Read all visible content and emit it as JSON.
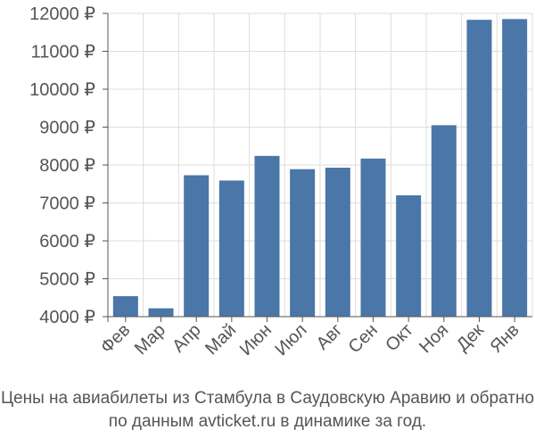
{
  "chart_data": {
    "type": "bar",
    "categories": [
      "Фев",
      "Мар",
      "Апр",
      "Май",
      "Июн",
      "Июл",
      "Авг",
      "Сен",
      "Окт",
      "Ноя",
      "Дек",
      "Янв"
    ],
    "values": [
      4540,
      4220,
      7730,
      7590,
      8240,
      7890,
      7930,
      8170,
      7200,
      9050,
      11830,
      11850
    ],
    "ylim": [
      4000,
      12000
    ],
    "yticks": [
      4000,
      5000,
      6000,
      7000,
      8000,
      9000,
      10000,
      11000,
      12000
    ],
    "ytick_labels": [
      "4000 ₽",
      "5000 ₽",
      "6000 ₽",
      "7000 ₽",
      "8000 ₽",
      "9000 ₽",
      "10000 ₽",
      "11000 ₽",
      "12000 ₽"
    ],
    "grid": true,
    "colors": {
      "bar": "#4a76a8",
      "grid": "#dddddd",
      "axis": "#555555"
    }
  },
  "caption": {
    "line1": "Цены на авиабилеты из Стамбула в Саудовскую Аравию и обратно",
    "line2": "по данным avticket.ru в динамике за год."
  }
}
